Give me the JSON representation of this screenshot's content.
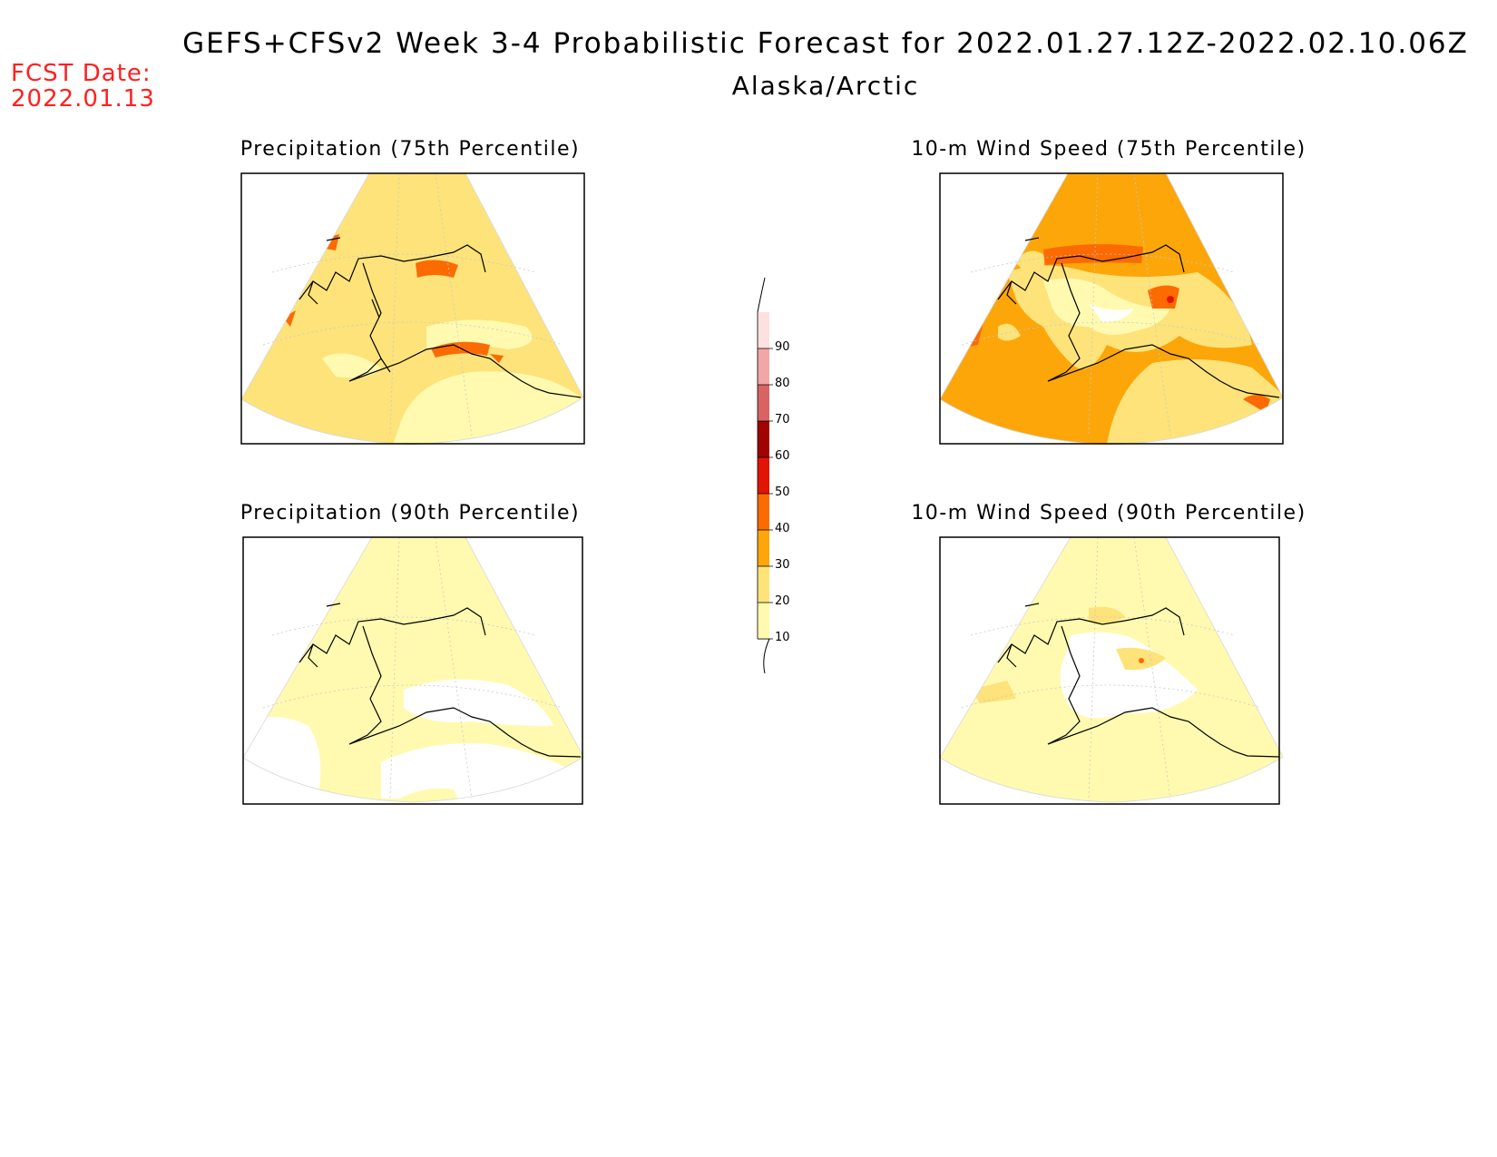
{
  "header": {
    "title": "GEFS+CFSv2 Week 3-4 Probabilistic Forecast for 2022.01.27.12Z-2022.02.10.06Z",
    "region": "Alaska/Arctic",
    "fcst_label": "FCST Date:",
    "fcst_date": "2022.01.13"
  },
  "panels": [
    {
      "title": "Precipitation (75th Percentile)"
    },
    {
      "title": "10-m Wind Speed (75th Percentile)"
    },
    {
      "title": "Precipitation (90th Percentile)"
    },
    {
      "title": "10-m Wind Speed (90th Percentile)"
    }
  ],
  "colorbar": {
    "levels": [
      "10",
      "20",
      "30",
      "40",
      "50",
      "60",
      "70",
      "80",
      "90"
    ],
    "colors": {
      "c10": "#fffab0",
      "c20": "#fde37a",
      "c30": "#fca60a",
      "c40": "#fc6a02",
      "c50": "#e21403",
      "c60": "#a00400",
      "c70": "#d96363",
      "c80": "#f3a6a6",
      "c90": "#fde0e0"
    }
  }
}
